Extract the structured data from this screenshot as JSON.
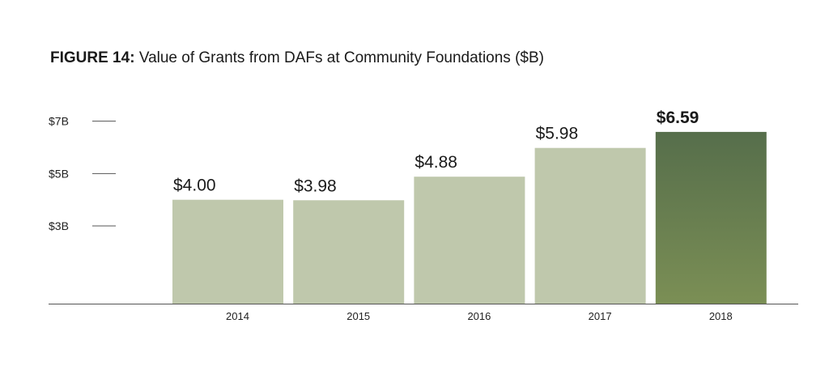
{
  "title": {
    "prefix": "FIGURE 14:",
    "text": "Value of Grants from DAFs at Community Foundations ($B)"
  },
  "colors": {
    "bar": "#bfc8ac",
    "highlight_top": "#566e4b",
    "highlight_bottom": "#7b8f55",
    "axis": "#555555"
  },
  "chart_data": {
    "type": "bar",
    "title": "Value of Grants from DAFs at Community Foundations ($B)",
    "categories": [
      "2014",
      "2015",
      "2016",
      "2017",
      "2018"
    ],
    "values": [
      4.0,
      3.98,
      4.88,
      5.98,
      6.59
    ],
    "data_labels": [
      "$4.00",
      "$3.98",
      "$4.88",
      "$5.98",
      "$6.59"
    ],
    "highlight_index": 4,
    "y_ticks": [
      {
        "value": 3,
        "label": "$3B"
      },
      {
        "value": 5,
        "label": "$5B"
      },
      {
        "value": 7,
        "label": "$7B"
      }
    ],
    "xlabel": "",
    "ylabel": "",
    "grid": false,
    "legend": "none"
  }
}
